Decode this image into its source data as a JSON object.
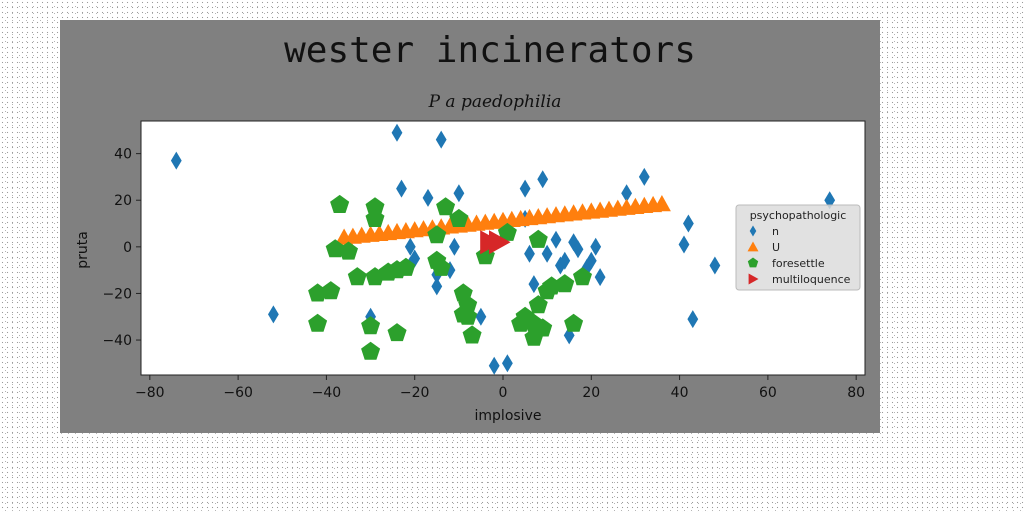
{
  "chart_data": {
    "type": "scatter",
    "title": "wester incinerators",
    "subtitle": "P a paedophilia",
    "xlabel": "implosive",
    "ylabel": "pruta",
    "xlim": [
      -82,
      82
    ],
    "ylim": [
      -55,
      54
    ],
    "xticks": [
      -80,
      -60,
      -40,
      -20,
      0,
      20,
      40,
      60,
      80
    ],
    "yticks": [
      -40,
      -20,
      0,
      20,
      40
    ],
    "grid": false,
    "legend": {
      "title": "psychopathologic",
      "placement": "center-right"
    },
    "series": [
      {
        "name": "n",
        "marker": "diamond",
        "color": "#1f77b4",
        "points": [
          [
            -74,
            37
          ],
          [
            -52,
            -29
          ],
          [
            -24,
            49
          ],
          [
            -23,
            25
          ],
          [
            -21,
            0
          ],
          [
            -20,
            -5
          ],
          [
            -21,
            -8
          ],
          [
            -30,
            -30
          ],
          [
            -17,
            21
          ],
          [
            -15,
            -12
          ],
          [
            -15,
            -17
          ],
          [
            -14,
            46
          ],
          [
            -12,
            -10
          ],
          [
            -11,
            0
          ],
          [
            -10,
            23
          ],
          [
            -10,
            12
          ],
          [
            -5,
            -30
          ],
          [
            -2,
            -51
          ],
          [
            1,
            -50
          ],
          [
            5,
            25
          ],
          [
            5,
            12
          ],
          [
            6,
            -3
          ],
          [
            7,
            -16
          ],
          [
            9,
            29
          ],
          [
            10,
            -3
          ],
          [
            12,
            3
          ],
          [
            13,
            -8
          ],
          [
            14,
            -6
          ],
          [
            15,
            -38
          ],
          [
            16,
            2
          ],
          [
            17,
            -1
          ],
          [
            19,
            -9
          ],
          [
            20,
            -6
          ],
          [
            21,
            0
          ],
          [
            22,
            -13
          ],
          [
            28,
            23
          ],
          [
            32,
            30
          ],
          [
            41,
            1
          ],
          [
            42,
            10
          ],
          [
            43,
            -31
          ],
          [
            48,
            -8
          ],
          [
            74,
            20
          ]
        ]
      },
      {
        "name": "U",
        "marker": "triangle-up",
        "color": "#ff7f0e",
        "points": [
          [
            -36,
            4
          ],
          [
            -34,
            4.4
          ],
          [
            -32,
            4.8
          ],
          [
            -30,
            5.2
          ],
          [
            -28,
            5.6
          ],
          [
            -26,
            6
          ],
          [
            -24,
            6.4
          ],
          [
            -22,
            6.8
          ],
          [
            -20,
            7.2
          ],
          [
            -18,
            7.6
          ],
          [
            -16,
            8
          ],
          [
            -14,
            8.4
          ],
          [
            -12,
            8.8
          ],
          [
            -10,
            9.2
          ],
          [
            -8,
            9.6
          ],
          [
            -6,
            10
          ],
          [
            -4,
            10.4
          ],
          [
            -2,
            10.8
          ],
          [
            0,
            11.2
          ],
          [
            2,
            11.6
          ],
          [
            4,
            12
          ],
          [
            6,
            12.4
          ],
          [
            8,
            12.8
          ],
          [
            10,
            13.2
          ],
          [
            12,
            13.6
          ],
          [
            14,
            14
          ],
          [
            16,
            14.4
          ],
          [
            18,
            14.8
          ],
          [
            20,
            15.2
          ],
          [
            22,
            15.6
          ],
          [
            24,
            16
          ],
          [
            26,
            16.4
          ],
          [
            28,
            16.8
          ],
          [
            30,
            17.2
          ],
          [
            32,
            17.6
          ],
          [
            34,
            18
          ],
          [
            36,
            18.4
          ]
        ]
      },
      {
        "name": "foresettle",
        "marker": "pentagon",
        "color": "#2ca02c",
        "points": [
          [
            -37,
            18
          ],
          [
            -38,
            -1
          ],
          [
            -35,
            -2
          ],
          [
            -33,
            -13
          ],
          [
            -29,
            17
          ],
          [
            -29,
            12
          ],
          [
            -29,
            -13
          ],
          [
            -30,
            -34
          ],
          [
            -30,
            -45
          ],
          [
            -26,
            -11
          ],
          [
            -24,
            -37
          ],
          [
            -24,
            -10
          ],
          [
            -22,
            -9
          ],
          [
            -42,
            -20
          ],
          [
            -39,
            -19
          ],
          [
            -42,
            -33
          ],
          [
            -15,
            5
          ],
          [
            -15,
            -6
          ],
          [
            -14,
            -9
          ],
          [
            -13,
            17
          ],
          [
            -10,
            12
          ],
          [
            -9,
            -20
          ],
          [
            -9,
            -29
          ],
          [
            -8,
            -25
          ],
          [
            -8,
            -30
          ],
          [
            -7,
            -38
          ],
          [
            -4,
            -4
          ],
          [
            1,
            6
          ],
          [
            4,
            -33
          ],
          [
            5,
            -30
          ],
          [
            7,
            -33
          ],
          [
            7,
            -39
          ],
          [
            8,
            3
          ],
          [
            8,
            -25
          ],
          [
            9,
            -35
          ],
          [
            10,
            -19
          ],
          [
            11,
            -17
          ],
          [
            14,
            -16
          ],
          [
            16,
            -33
          ],
          [
            18,
            -13
          ]
        ]
      },
      {
        "name": "multiloquence",
        "marker": "triangle-right",
        "color": "#d62728",
        "points": [
          [
            -3,
            2
          ],
          [
            -1,
            2
          ]
        ]
      }
    ]
  }
}
